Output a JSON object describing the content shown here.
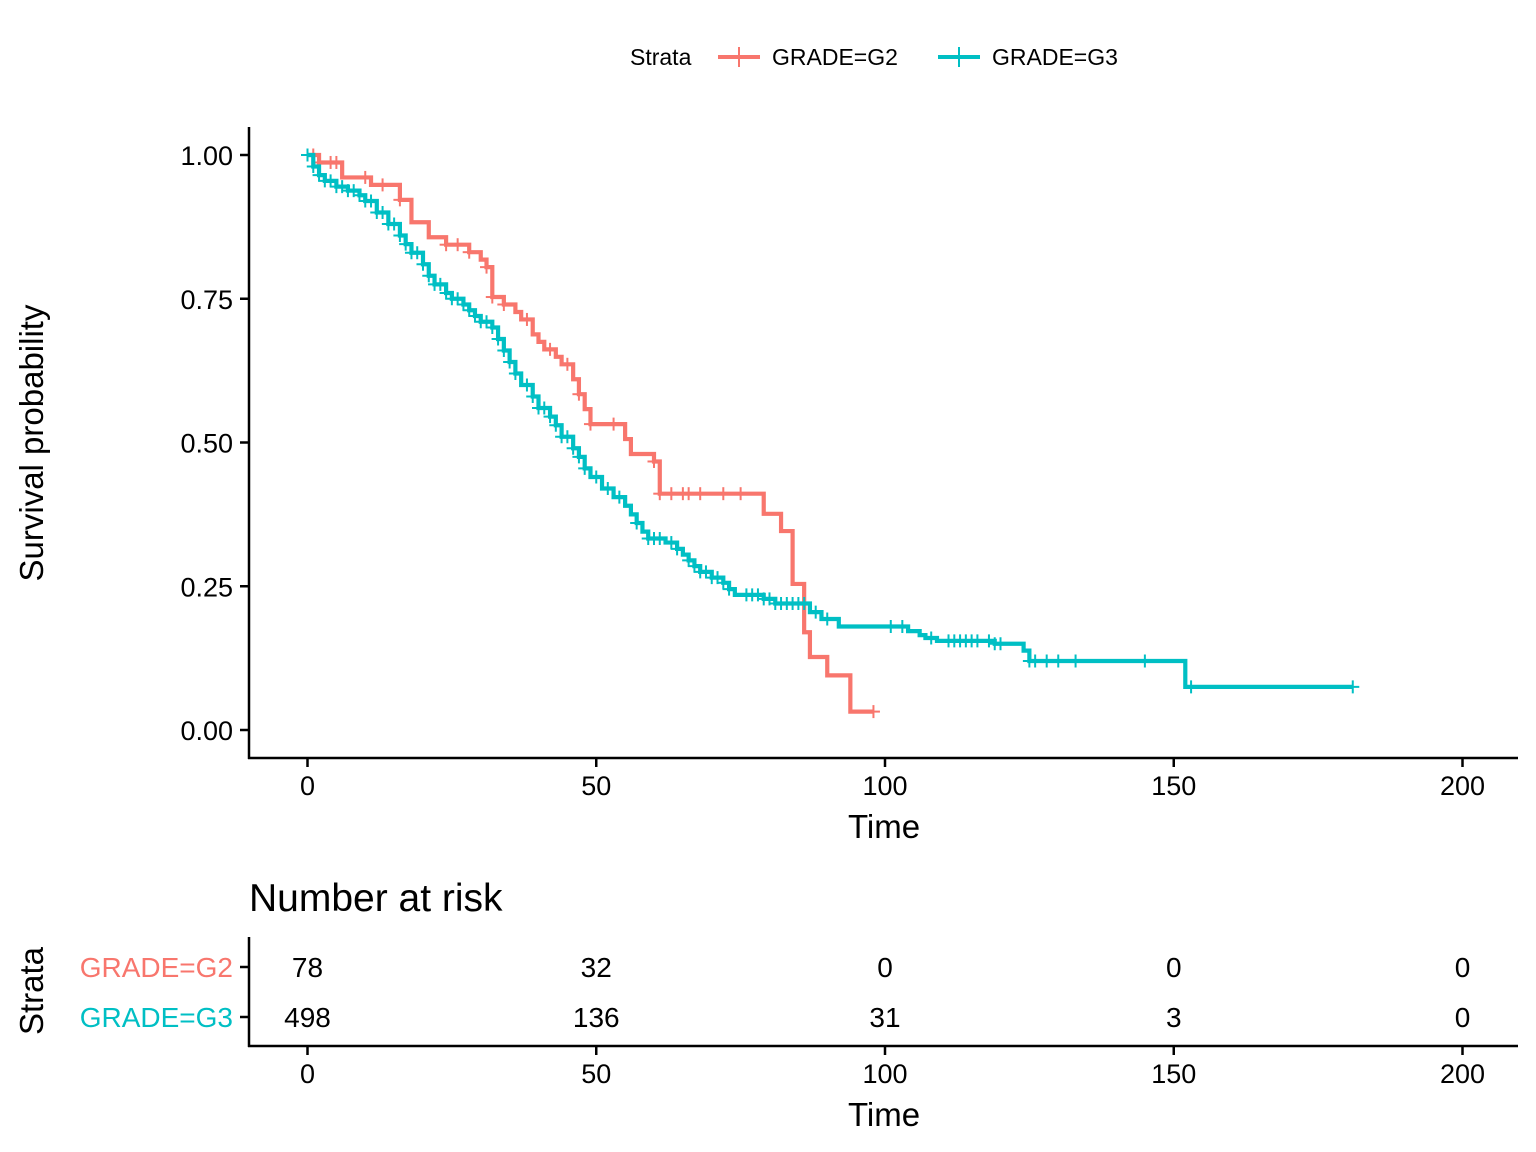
{
  "chart_data": {
    "type": "line",
    "legend": {
      "title": "Strata",
      "position": "top",
      "entries": [
        "GRADE=G2",
        "GRADE=G3"
      ]
    },
    "xlabel": "Time",
    "ylabel": "Survival probability",
    "xlim": [
      -10,
      210
    ],
    "ylim": [
      -0.05,
      1.05
    ],
    "x_ticks": [
      0,
      50,
      100,
      150,
      200
    ],
    "x_tick_labels": [
      "0",
      "50",
      "100",
      "150",
      "200"
    ],
    "y_ticks": [
      0,
      0.25,
      0.5,
      0.75,
      1.0
    ],
    "y_tick_labels": [
      "0.00",
      "0.25",
      "0.50",
      "0.75",
      "1.00"
    ],
    "grid": false,
    "series": [
      {
        "name": "GRADE=G2",
        "color": "#F8766D",
        "steps": [
          [
            0,
            1.0
          ],
          [
            2,
            0.987
          ],
          [
            6,
            0.961
          ],
          [
            11,
            0.948
          ],
          [
            16,
            0.922
          ],
          [
            18,
            0.883
          ],
          [
            21,
            0.857
          ],
          [
            24,
            0.844
          ],
          [
            28,
            0.831
          ],
          [
            30,
            0.818
          ],
          [
            31,
            0.805
          ],
          [
            32,
            0.753
          ],
          [
            34,
            0.74
          ],
          [
            36,
            0.727
          ],
          [
            37,
            0.714
          ],
          [
            39,
            0.688
          ],
          [
            40,
            0.675
          ],
          [
            41,
            0.662
          ],
          [
            43,
            0.649
          ],
          [
            44,
            0.636
          ],
          [
            46,
            0.61
          ],
          [
            47,
            0.584
          ],
          [
            48,
            0.558
          ],
          [
            49,
            0.532
          ],
          [
            55,
            0.506
          ],
          [
            56,
            0.48
          ],
          [
            60,
            0.467
          ],
          [
            61,
            0.411
          ],
          [
            79,
            0.376
          ],
          [
            82,
            0.346
          ],
          [
            84,
            0.254
          ],
          [
            86,
            0.17
          ],
          [
            87,
            0.127
          ],
          [
            90,
            0.095
          ],
          [
            94,
            0.032
          ]
        ],
        "end_time": 98,
        "censor_times": [
          1,
          2,
          4,
          5,
          10,
          13,
          16,
          24,
          26,
          28,
          31,
          32,
          34,
          38,
          42,
          45,
          47,
          49,
          53,
          60,
          61,
          63,
          65,
          66,
          68,
          72,
          75,
          98
        ]
      },
      {
        "name": "GRADE=G3",
        "color": "#00BFC4",
        "steps": [
          [
            0,
            1.0
          ],
          [
            1,
            0.98
          ],
          [
            2,
            0.965
          ],
          [
            3,
            0.955
          ],
          [
            5,
            0.945
          ],
          [
            7,
            0.938
          ],
          [
            9,
            0.93
          ],
          [
            10,
            0.92
          ],
          [
            12,
            0.9
          ],
          [
            14,
            0.88
          ],
          [
            16,
            0.86
          ],
          [
            17,
            0.845
          ],
          [
            18,
            0.83
          ],
          [
            20,
            0.81
          ],
          [
            21,
            0.79
          ],
          [
            22,
            0.775
          ],
          [
            24,
            0.76
          ],
          [
            25,
            0.75
          ],
          [
            27,
            0.74
          ],
          [
            28,
            0.73
          ],
          [
            29,
            0.72
          ],
          [
            30,
            0.71
          ],
          [
            32,
            0.7
          ],
          [
            33,
            0.68
          ],
          [
            34,
            0.66
          ],
          [
            35,
            0.64
          ],
          [
            36,
            0.62
          ],
          [
            37,
            0.6
          ],
          [
            39,
            0.58
          ],
          [
            40,
            0.56
          ],
          [
            42,
            0.545
          ],
          [
            43,
            0.53
          ],
          [
            44,
            0.51
          ],
          [
            46,
            0.49
          ],
          [
            47,
            0.475
          ],
          [
            48,
            0.455
          ],
          [
            49,
            0.44
          ],
          [
            51,
            0.42
          ],
          [
            53,
            0.405
          ],
          [
            55,
            0.39
          ],
          [
            56,
            0.375
          ],
          [
            57,
            0.36
          ],
          [
            58,
            0.345
          ],
          [
            59,
            0.333
          ],
          [
            62,
            0.326
          ],
          [
            64,
            0.315
          ],
          [
            65,
            0.305
          ],
          [
            66,
            0.295
          ],
          [
            67,
            0.285
          ],
          [
            68,
            0.275
          ],
          [
            70,
            0.265
          ],
          [
            72,
            0.256
          ],
          [
            73,
            0.245
          ],
          [
            74,
            0.235
          ],
          [
            79,
            0.228
          ],
          [
            81,
            0.22
          ],
          [
            87,
            0.205
          ],
          [
            89,
            0.193
          ],
          [
            92,
            0.18
          ],
          [
            104,
            0.172
          ],
          [
            106,
            0.165
          ],
          [
            107,
            0.16
          ],
          [
            109,
            0.155
          ],
          [
            119,
            0.15
          ],
          [
            124,
            0.138
          ],
          [
            125,
            0.12
          ],
          [
            152,
            0.075
          ]
        ],
        "end_time": 181,
        "censor_times": [
          0,
          1,
          2,
          3,
          4,
          5,
          6,
          7,
          8,
          9,
          10,
          11,
          12,
          13,
          14,
          15,
          16,
          17,
          18,
          19,
          20,
          21,
          22,
          23,
          24,
          25,
          26,
          27,
          28,
          29,
          30,
          31,
          32,
          33,
          34,
          35,
          36,
          38,
          39,
          40,
          41,
          42,
          43,
          44,
          45,
          46,
          47,
          48,
          50,
          52,
          54,
          57,
          59,
          60,
          61,
          63,
          64,
          66,
          67,
          68,
          69,
          70,
          71,
          72,
          73,
          76,
          77,
          78,
          79,
          80,
          81,
          82,
          83,
          84,
          85,
          86,
          88,
          90,
          101,
          103,
          108,
          111,
          112,
          113,
          114,
          115,
          116,
          118,
          119,
          120,
          125,
          126,
          128,
          130,
          133,
          145,
          153,
          181
        ]
      }
    ],
    "risk_table": {
      "title": "Number at risk",
      "ylabel": "Strata",
      "xlabel": "Time",
      "times": [
        0,
        50,
        100,
        150,
        200
      ],
      "rows": [
        {
          "label": "GRADE=G2",
          "color": "#F8766D",
          "counts": [
            "78",
            "32",
            "0",
            "0",
            "0"
          ]
        },
        {
          "label": "GRADE=G3",
          "color": "#00BFC4",
          "counts": [
            "498",
            "136",
            "31",
            "3",
            "0"
          ]
        }
      ]
    }
  }
}
